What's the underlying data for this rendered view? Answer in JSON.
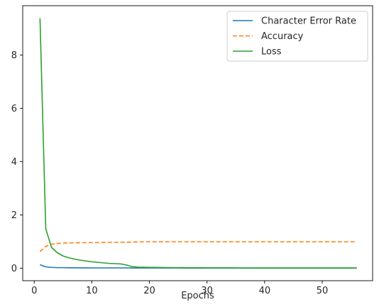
{
  "chart_data": {
    "type": "line",
    "title": "",
    "xlabel": "Epochs",
    "ylabel": "",
    "xlim": [
      -2,
      58.75
    ],
    "ylim": [
      -0.47,
      9.85
    ],
    "xticks": [
      0,
      10,
      20,
      30,
      40,
      50
    ],
    "yticks": [
      0,
      2,
      4,
      6,
      8
    ],
    "grid": false,
    "legend_position": "top-right",
    "x": [
      1,
      2,
      3,
      4,
      5,
      6,
      7,
      8,
      9,
      10,
      11,
      12,
      13,
      14,
      15,
      16,
      17,
      18,
      19,
      20,
      21,
      22,
      23,
      24,
      25,
      26,
      27,
      28,
      29,
      30,
      31,
      32,
      33,
      34,
      35,
      36,
      37,
      38,
      39,
      40,
      41,
      42,
      43,
      44,
      45,
      46,
      47,
      48,
      49,
      50,
      51,
      52,
      53,
      54,
      55,
      56
    ],
    "series": [
      {
        "name": "Character Error Rate",
        "color": "#1f77b4",
        "dash": "solid",
        "values": [
          0.13,
          0.05,
          0.03,
          0.02,
          0.02,
          0.015,
          0.015,
          0.012,
          0.012,
          0.01,
          0.01,
          0.01,
          0.01,
          0.01,
          0.01,
          0.01,
          0.008,
          0.008,
          0.008,
          0.008,
          0.007,
          0.007,
          0.007,
          0.007,
          0.007,
          0.006,
          0.006,
          0.006,
          0.006,
          0.006,
          0.006,
          0.005,
          0.005,
          0.005,
          0.005,
          0.005,
          0.005,
          0.005,
          0.005,
          0.005,
          0.005,
          0.005,
          0.005,
          0.005,
          0.005,
          0.005,
          0.005,
          0.005,
          0.005,
          0.005,
          0.005,
          0.005,
          0.005,
          0.005,
          0.005,
          0.005
        ]
      },
      {
        "name": "Accuracy",
        "color": "#ff7f0e",
        "dash": "dashed",
        "values": [
          0.62,
          0.82,
          0.9,
          0.93,
          0.94,
          0.95,
          0.95,
          0.955,
          0.96,
          0.96,
          0.96,
          0.965,
          0.97,
          0.97,
          0.97,
          0.975,
          0.98,
          0.985,
          0.99,
          0.99,
          0.99,
          0.99,
          0.99,
          0.99,
          0.99,
          0.99,
          0.99,
          0.99,
          0.99,
          0.99,
          0.99,
          0.99,
          0.99,
          0.99,
          0.99,
          0.99,
          0.99,
          0.99,
          0.99,
          0.99,
          0.99,
          0.99,
          0.99,
          0.99,
          0.99,
          0.99,
          0.99,
          0.99,
          0.99,
          0.99,
          0.99,
          0.99,
          0.99,
          0.99,
          0.99,
          0.99
        ]
      },
      {
        "name": "Loss",
        "color": "#2ca02c",
        "dash": "solid",
        "values": [
          9.38,
          1.48,
          0.78,
          0.58,
          0.46,
          0.39,
          0.34,
          0.3,
          0.27,
          0.24,
          0.22,
          0.2,
          0.18,
          0.17,
          0.16,
          0.12,
          0.06,
          0.04,
          0.035,
          0.03,
          0.028,
          0.025,
          0.022,
          0.02,
          0.018,
          0.017,
          0.016,
          0.015,
          0.014,
          0.013,
          0.012,
          0.012,
          0.011,
          0.011,
          0.01,
          0.01,
          0.01,
          0.01,
          0.009,
          0.009,
          0.009,
          0.009,
          0.009,
          0.008,
          0.008,
          0.008,
          0.008,
          0.008,
          0.008,
          0.008,
          0.008,
          0.008,
          0.008,
          0.008,
          0.008,
          0.008
        ]
      }
    ]
  }
}
